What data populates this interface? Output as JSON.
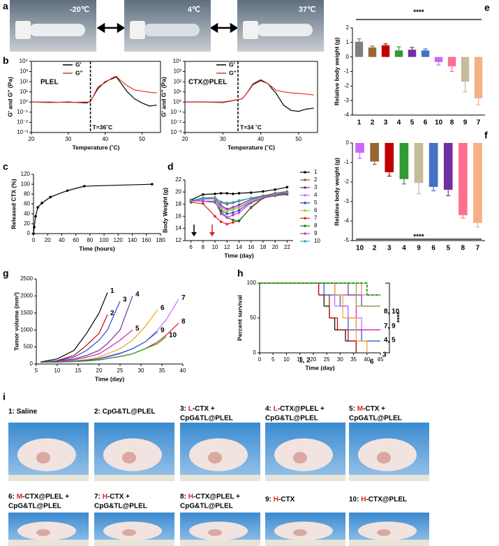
{
  "panels": [
    "a",
    "b",
    "c",
    "d",
    "e",
    "f",
    "g",
    "h",
    "i"
  ],
  "photos_a": [
    "-20℃",
    "4℃",
    "37℃"
  ],
  "photos_i": [
    {
      "number": "1:",
      "text": "Saline"
    },
    {
      "number": "2:",
      "text": "CpG&TL@PLEL"
    },
    {
      "number": "3:",
      "dose": "L",
      "text": "-CTX +",
      "line2": "CpG&TL@PLEL"
    },
    {
      "number": "4:",
      "dose": "L",
      "text": "-CTX@PLEL +",
      "line2": "CpG&TL@PLEL"
    },
    {
      "number": "5:",
      "dose": "M",
      "text": "-CTX +",
      "line2": "CpG&TL@PLEL"
    },
    {
      "number": "6:",
      "dose": "M",
      "text": "-CTX@PLEL +",
      "line2": "CpG&TL@PLEL"
    },
    {
      "number": "7:",
      "dose": "H",
      "text": "-CTX +",
      "line2": "CpG&TL@PLEL"
    },
    {
      "number": "8:",
      "dose": "H",
      "text": "-CTX@PLEL +",
      "line2": "CpG&TL@PLEL"
    },
    {
      "number": "9:",
      "dose": "H",
      "text": "-CTX"
    },
    {
      "number": "10:",
      "dose": "H",
      "text": "-CTX@PLEL"
    }
  ],
  "chart_data": [
    {
      "type": "line",
      "yscale": "log",
      "xlabel": "Temperature (˚C)",
      "ylabel": "G' and G'' (Pa)",
      "annotations": [
        "PLEL",
        "T=36˚C"
      ],
      "vline": 36,
      "legend": "upper center",
      "x": [
        20,
        25,
        30,
        35,
        36,
        38,
        40,
        42,
        43,
        44,
        46,
        48,
        50,
        52,
        54
      ],
      "series": [
        {
          "name": "G'",
          "color": "#000000",
          "values": [
            1,
            0.9,
            1,
            0.8,
            1.2,
            20,
            100,
            200,
            300,
            100,
            10,
            2,
            0.8,
            0.4,
            0.5
          ]
        },
        {
          "name": "G''",
          "color": "#e8362b",
          "values": [
            1,
            1,
            0.9,
            1,
            1,
            30,
            80,
            250,
            350,
            150,
            40,
            15,
            12,
            9,
            8
          ]
        }
      ],
      "xlim": [
        20,
        55
      ],
      "xticks": [
        20,
        30,
        40,
        50
      ],
      "ylim": [
        0.001,
        10000
      ],
      "yticks": [
        {
          "value": 0.001,
          "label": "10⁻³"
        },
        {
          "value": 0.01,
          "label": "10⁻²"
        },
        {
          "value": 0.1,
          "label": "10⁻¹"
        },
        {
          "value": 1,
          "label": "10⁰"
        },
        {
          "value": 10,
          "label": "10¹"
        },
        {
          "value": 100,
          "label": "10²"
        },
        {
          "value": 1000,
          "label": "10³"
        },
        {
          "value": 10000,
          "label": "10⁴"
        }
      ]
    },
    {
      "type": "line",
      "yscale": "log",
      "xlabel": "Temperature (˚C)",
      "ylabel": "G' and G'' (Pa)",
      "annotations": [
        "CTX@PLEL",
        "T=34 ˚C"
      ],
      "vline": 34,
      "legend": "upper center",
      "x": [
        20,
        25,
        30,
        35,
        36,
        38,
        40,
        42,
        43,
        44,
        46,
        48,
        50,
        52,
        54
      ],
      "series": [
        {
          "name": "G'",
          "color": "#000000",
          "values": [
            1,
            1,
            0.9,
            2,
            5,
            60,
            150,
            60,
            20,
            8,
            0.5,
            0.15,
            0.12,
            0.2,
            0.25
          ]
        },
        {
          "name": "G''",
          "color": "#e8362b",
          "values": [
            1,
            1,
            1,
            2,
            5,
            50,
            120,
            60,
            30,
            15,
            10,
            8,
            7,
            6,
            5
          ]
        }
      ],
      "xlim": [
        20,
        55
      ],
      "xticks": [
        20,
        30,
        40,
        50
      ],
      "ylim": [
        0.001,
        10000
      ],
      "yticks": [
        {
          "value": 0.001,
          "label": "10⁻³"
        },
        {
          "value": 0.01,
          "label": "10⁻²"
        },
        {
          "value": 0.1,
          "label": "10⁻¹"
        },
        {
          "value": 1,
          "label": "10⁰"
        },
        {
          "value": 10,
          "label": "10¹"
        },
        {
          "value": 100,
          "label": "10²"
        },
        {
          "value": 1000,
          "label": "10³"
        },
        {
          "value": 10000,
          "label": "10⁴"
        }
      ]
    },
    {
      "type": "line",
      "markers": true,
      "xlabel": "Time (hours)",
      "ylabel": "Released CTX (%)",
      "x": [
        0,
        1,
        3,
        6,
        12,
        24,
        48,
        72,
        168
      ],
      "series": [
        {
          "color": "#000000",
          "values": [
            0,
            13,
            35,
            53,
            62,
            74,
            87,
            96,
            100
          ]
        }
      ],
      "xlim": [
        0,
        180
      ],
      "xticks": [
        0,
        20,
        40,
        60,
        80,
        100,
        120,
        140,
        160,
        180
      ],
      "ylim": [
        0,
        120
      ],
      "yticks": [
        0,
        20,
        40,
        60,
        80,
        100,
        120
      ]
    },
    {
      "type": "line",
      "markers": true,
      "xlabel": "Time (day)",
      "ylabel": "Body Weight (g)",
      "legend": "right",
      "x": [
        6,
        8,
        10,
        11,
        12,
        13,
        14,
        16,
        18,
        20,
        22
      ],
      "series": [
        {
          "name": "1",
          "color": "#000000",
          "values": [
            18.7,
            19.6,
            19.7,
            19.8,
            19.8,
            19.7,
            19.8,
            19.9,
            20.1,
            20.4,
            20.8
          ]
        },
        {
          "name": "2",
          "color": "#8b5a2b",
          "values": [
            18.6,
            19.0,
            19.1,
            18.3,
            18.0,
            18.2,
            18.5,
            19.0,
            19.4,
            19.8,
            20.1
          ]
        },
        {
          "name": "3",
          "color": "#7030a0",
          "values": [
            18.5,
            18.9,
            19.0,
            17.8,
            17.2,
            17.5,
            17.9,
            18.8,
            19.3,
            19.6,
            20.0
          ]
        },
        {
          "name": "4",
          "color": "#cc66ff",
          "values": [
            18.4,
            18.8,
            18.9,
            17.6,
            17.0,
            17.3,
            17.6,
            18.6,
            19.2,
            19.5,
            19.8
          ]
        },
        {
          "name": "5",
          "color": "#3344cc",
          "values": [
            18.6,
            19.0,
            19.0,
            17.0,
            16.4,
            16.6,
            17.0,
            18.4,
            19.1,
            19.4,
            19.7
          ]
        },
        {
          "name": "6",
          "color": "#99cc33",
          "values": [
            18.5,
            18.9,
            19.0,
            17.3,
            16.8,
            17.1,
            17.4,
            18.5,
            19.1,
            19.5,
            19.8
          ]
        },
        {
          "name": "7",
          "color": "#e02020",
          "values": [
            18.3,
            18.1,
            16.0,
            15.1,
            14.7,
            15.0,
            15.3,
            17.4,
            19.0,
            19.4,
            19.6
          ]
        },
        {
          "name": "8",
          "color": "#1a7a2a",
          "values": [
            18.6,
            18.5,
            18.3,
            16.8,
            15.8,
            15.4,
            15.2,
            17.5,
            19.1,
            19.5,
            19.7
          ]
        },
        {
          "name": "9",
          "color": "#cc33cc",
          "values": [
            18.7,
            18.5,
            18.5,
            16.4,
            15.8,
            16.2,
            16.6,
            18.2,
            19.0,
            19.5,
            19.9
          ]
        },
        {
          "name": "10",
          "color": "#2aa8c8",
          "values": [
            18.6,
            18.9,
            18.9,
            18.4,
            18.2,
            18.3,
            18.6,
            19.0,
            19.3,
            19.6,
            20.0
          ]
        }
      ],
      "xlim": [
        5,
        23
      ],
      "xticks": [
        6,
        8,
        10,
        12,
        14,
        16,
        18,
        20,
        22
      ],
      "ylim": [
        12,
        22
      ],
      "yticks": [
        12,
        14,
        16,
        18,
        20,
        22
      ]
    },
    {
      "type": "bar",
      "ylabel": "Relative body weight (g)",
      "annotations": [
        "****"
      ],
      "categories": [
        "1",
        "2",
        "3",
        "4",
        "5",
        "6",
        "10",
        "8",
        "9",
        "7"
      ],
      "values": [
        1.05,
        0.65,
        0.8,
        0.45,
        0.5,
        0.45,
        -0.35,
        -0.65,
        -1.7,
        -2.85
      ],
      "errors": [
        0.2,
        0.1,
        0.1,
        0.25,
        0.15,
        0.1,
        0.2,
        0.35,
        0.7,
        0.45
      ],
      "colors": [
        "#7f7f7f",
        "#996633",
        "#c00000",
        "#339933",
        "#7030a0",
        "#4472c4",
        "#cc66ff",
        "#ff6f8f",
        "#c4bd97",
        "#f4b183"
      ],
      "ylim": [
        -4,
        2
      ],
      "yticks": [
        -4,
        -3,
        -2,
        -1,
        0,
        1,
        2
      ]
    },
    {
      "type": "bar",
      "ylabel": "Relative body weight (g)",
      "annotations": [
        "****"
      ],
      "categories": [
        "10",
        "2",
        "3",
        "4",
        "9",
        "6",
        "5",
        "8",
        "7"
      ],
      "values": [
        -0.5,
        -0.95,
        -1.5,
        -1.85,
        -2.05,
        -2.25,
        -2.4,
        -3.7,
        -4.1
      ],
      "errors": [
        0.3,
        0.15,
        0.2,
        0.25,
        0.55,
        0.2,
        0.3,
        0.15,
        0.2
      ],
      "colors": [
        "#cc66ff",
        "#996633",
        "#c00000",
        "#339933",
        "#c4bd97",
        "#4472c4",
        "#7030a0",
        "#ff6f8f",
        "#f4b183"
      ],
      "ylim": [
        -5,
        0
      ],
      "yticks": [
        -5,
        -4,
        -3,
        -2,
        -1,
        0
      ]
    },
    {
      "type": "line",
      "endlabels": true,
      "xlabel": "Time (day)",
      "ylabel": "Tumor volume (mm³)",
      "x": [
        6,
        10,
        14,
        17,
        20,
        22,
        25,
        28,
        31,
        34,
        36,
        39
      ],
      "series": [
        {
          "name": "1",
          "color": "#000000",
          "values": [
            60,
            150,
            400,
            900,
            1500,
            2100,
            null,
            null,
            null,
            null,
            null,
            null
          ]
        },
        {
          "name": "2",
          "color": "#c00000",
          "values": [
            50,
            100,
            250,
            550,
            900,
            1450,
            null,
            null,
            null,
            null,
            null,
            null
          ]
        },
        {
          "name": "3",
          "color": "#1f4fd0",
          "values": [
            50,
            90,
            200,
            400,
            700,
            1000,
            1850,
            null,
            null,
            null,
            null,
            null
          ]
        },
        {
          "name": "4",
          "color": "#7030a0",
          "values": [
            50,
            80,
            150,
            250,
            400,
            600,
            1000,
            2000,
            null,
            null,
            null,
            null
          ]
        },
        {
          "name": "5",
          "color": "#d020b0",
          "values": [
            50,
            70,
            120,
            200,
            300,
            450,
            700,
            1000,
            null,
            null,
            null,
            null
          ]
        },
        {
          "name": "6",
          "color": "#f0a020",
          "values": [
            50,
            60,
            90,
            130,
            200,
            300,
            450,
            700,
            1100,
            1600,
            null,
            null
          ]
        },
        {
          "name": "7",
          "color": "#cc66ff",
          "values": [
            50,
            60,
            80,
            100,
            150,
            200,
            300,
            450,
            650,
            1000,
            1300,
            1900
          ]
        },
        {
          "name": "8",
          "color": "#e02020",
          "values": [
            50,
            55,
            70,
            90,
            120,
            160,
            220,
            300,
            450,
            650,
            850,
            1200
          ]
        },
        {
          "name": "9",
          "color": "#2060c0",
          "values": [
            50,
            60,
            80,
            110,
            160,
            220,
            320,
            450,
            650,
            950,
            null,
            null
          ]
        },
        {
          "name": "10",
          "color": "#22a022",
          "values": [
            50,
            55,
            70,
            90,
            120,
            160,
            220,
            300,
            450,
            600,
            800,
            null
          ]
        }
      ],
      "xlim": [
        5,
        40
      ],
      "xticks": [
        5,
        10,
        15,
        20,
        25,
        30,
        35,
        40
      ],
      "ylim": [
        0,
        2500
      ],
      "yticks": [
        0,
        500,
        1000,
        1500,
        2000,
        2500
      ]
    },
    {
      "type": "step",
      "xlabel": "Time (day)",
      "ylabel": "Percent survival",
      "annotations": [
        "8, 10",
        "7, 9",
        "4, 5",
        "3",
        "1, 2",
        "6",
        "****"
      ],
      "series": [
        {
          "color": "#000000",
          "x": [
            0,
            22,
            24,
            26,
            28,
            32,
            36
          ],
          "values": [
            100,
            83,
            67,
            50,
            33,
            17,
            0
          ]
        },
        {
          "color": "#c00000",
          "x": [
            0,
            22,
            26,
            29,
            33,
            36
          ],
          "values": [
            100,
            83,
            50,
            33,
            17,
            0
          ]
        },
        {
          "color": "#1f4fd0",
          "x": [
            0,
            24,
            30,
            33,
            38,
            45
          ],
          "values": [
            100,
            83,
            67,
            33,
            17,
            17
          ]
        },
        {
          "color": "#cc66ff",
          "x": [
            0,
            28,
            33,
            38,
            45
          ],
          "values": [
            100,
            67,
            50,
            33,
            33
          ]
        },
        {
          "color": "#d020b0",
          "x": [
            0,
            28,
            36,
            45
          ],
          "values": [
            100,
            83,
            33,
            33
          ]
        },
        {
          "color": "#f0a020",
          "x": [
            0,
            28,
            31,
            36,
            40
          ],
          "values": [
            100,
            83,
            50,
            17,
            0
          ]
        },
        {
          "color": "#7030a0",
          "x": [
            0,
            33,
            38,
            45
          ],
          "values": [
            100,
            83,
            67,
            67
          ]
        },
        {
          "color": "#ff6f8f",
          "x": [
            0,
            38,
            45
          ],
          "values": [
            100,
            83,
            83
          ]
        },
        {
          "color": "#a0a040",
          "x": [
            0,
            36,
            45
          ],
          "values": [
            100,
            67,
            67
          ]
        },
        {
          "color": "#22a022",
          "dashed": true,
          "x": [
            0,
            40,
            45
          ],
          "values": [
            100,
            83,
            83
          ]
        }
      ],
      "xlim": [
        0,
        45
      ],
      "xticks": [
        0,
        5,
        10,
        15,
        20,
        25,
        30,
        35,
        40,
        45
      ],
      "ylim": [
        0,
        100
      ],
      "yticks": [
        0,
        50,
        100
      ]
    }
  ]
}
